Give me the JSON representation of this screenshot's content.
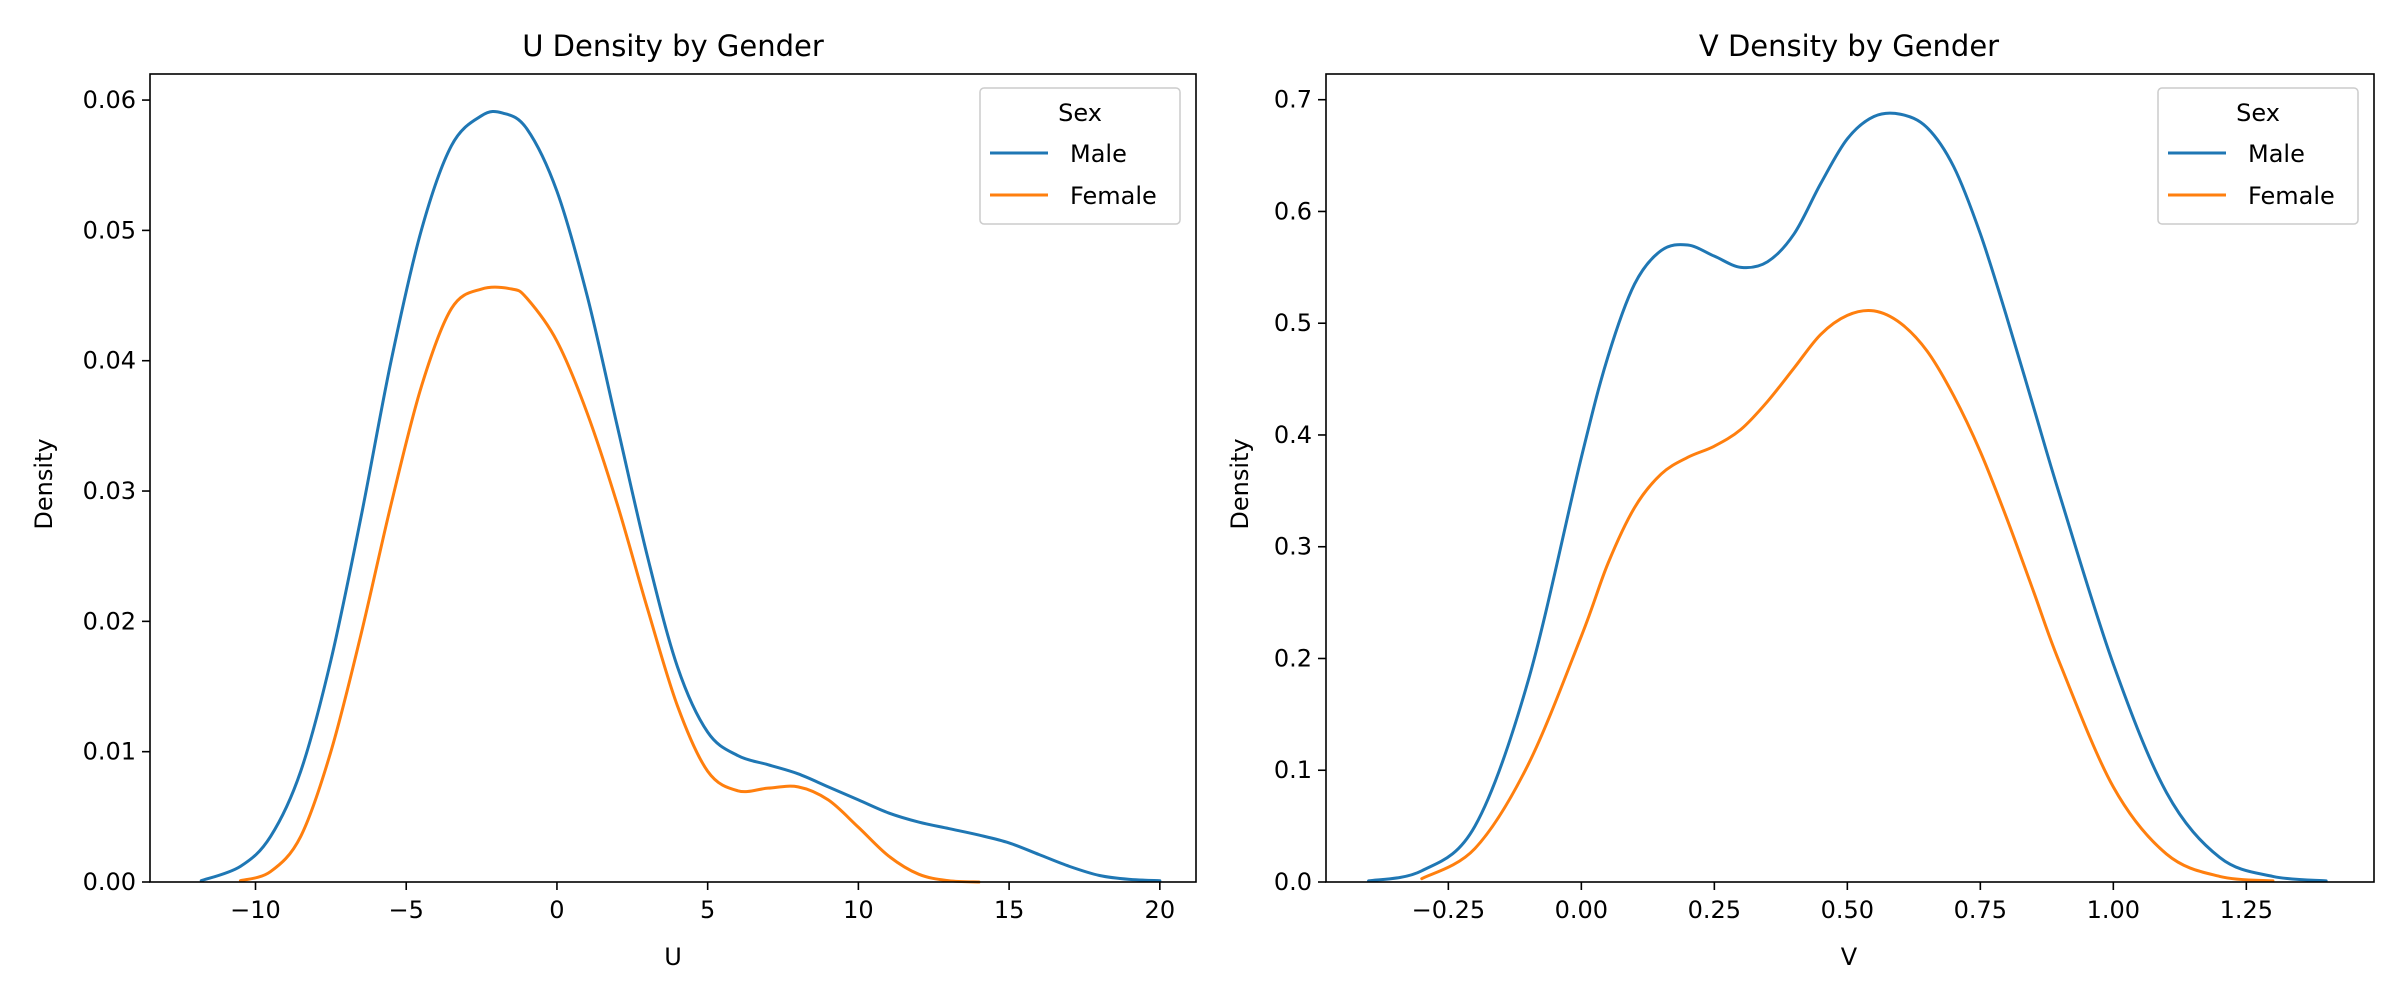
{
  "chart_data": [
    {
      "type": "line",
      "title": "U Density by Gender",
      "xlabel": "U",
      "ylabel": "Density",
      "xlim": [
        -13.5,
        21.2
      ],
      "ylim": [
        0,
        0.062
      ],
      "xticks": [
        -10,
        -5,
        0,
        5,
        10,
        15,
        20
      ],
      "xtick_labels": [
        "−10",
        "−5",
        "0",
        "5",
        "10",
        "15",
        "20"
      ],
      "yticks": [
        0,
        0.01,
        0.02,
        0.03,
        0.04,
        0.05,
        0.06
      ],
      "ytick_labels": [
        "0.00",
        "0.01",
        "0.02",
        "0.03",
        "0.04",
        "0.05",
        "0.06"
      ],
      "grid": false,
      "legend": {
        "title": "Sex",
        "placement": "upper-right"
      },
      "series": [
        {
          "name": "Male",
          "color": "#1f77b4",
          "x": [
            -11.8,
            -10.5,
            -9.5,
            -8.5,
            -7.5,
            -6.5,
            -5.5,
            -4.5,
            -3.5,
            -2.5,
            -1.8,
            -1,
            0,
            1,
            2,
            3,
            4,
            5,
            6,
            7,
            8,
            9,
            10,
            11,
            12,
            13,
            14,
            15,
            16,
            17,
            18,
            19,
            20
          ],
          "y": [
            0.0001,
            0.0012,
            0.0035,
            0.0085,
            0.017,
            0.028,
            0.04,
            0.05,
            0.0565,
            0.0588,
            0.059,
            0.0578,
            0.053,
            0.045,
            0.035,
            0.025,
            0.0165,
            0.0115,
            0.0097,
            0.009,
            0.0083,
            0.0073,
            0.0063,
            0.0053,
            0.0046,
            0.0041,
            0.0036,
            0.003,
            0.0021,
            0.0012,
            0.0005,
            0.0002,
            0.0001
          ]
        },
        {
          "name": "Female",
          "color": "#ff7f0e",
          "x": [
            -10.5,
            -9.5,
            -8.5,
            -7.5,
            -6.5,
            -5.5,
            -4.5,
            -3.5,
            -2.5,
            -1.5,
            -1,
            0,
            1,
            2,
            3,
            4,
            5,
            6,
            7,
            8,
            9,
            10,
            11,
            12,
            13,
            14
          ],
          "y": [
            0.0001,
            0.0008,
            0.0035,
            0.01,
            0.019,
            0.029,
            0.038,
            0.044,
            0.0455,
            0.0455,
            0.0448,
            0.0415,
            0.036,
            0.029,
            0.021,
            0.0135,
            0.0085,
            0.007,
            0.0072,
            0.0073,
            0.0063,
            0.0042,
            0.002,
            0.0006,
            0.0001,
            0
          ]
        }
      ]
    },
    {
      "type": "line",
      "title": "V Density by Gender",
      "xlabel": "V",
      "ylabel": "Density",
      "xlim": [
        -0.48,
        1.49
      ],
      "ylim": [
        0,
        0.723
      ],
      "xticks": [
        -0.25,
        0,
        0.25,
        0.5,
        0.75,
        1,
        1.25
      ],
      "xtick_labels": [
        "−0.25",
        "0.00",
        "0.25",
        "0.50",
        "0.75",
        "1.00",
        "1.25"
      ],
      "yticks": [
        0,
        0.1,
        0.2,
        0.3,
        0.4,
        0.5,
        0.6,
        0.7
      ],
      "ytick_labels": [
        "0.0",
        "0.1",
        "0.2",
        "0.3",
        "0.4",
        "0.5",
        "0.6",
        "0.7"
      ],
      "grid": false,
      "legend": {
        "title": "Sex",
        "placement": "upper-right"
      },
      "series": [
        {
          "name": "Male",
          "color": "#1f77b4",
          "x": [
            -0.4,
            -0.3,
            -0.2,
            -0.1,
            0,
            0.05,
            0.1,
            0.15,
            0.2,
            0.25,
            0.3,
            0.35,
            0.4,
            0.45,
            0.5,
            0.55,
            0.6,
            0.65,
            0.7,
            0.75,
            0.8,
            0.85,
            0.9,
            1,
            1.1,
            1.2,
            1.3,
            1.4
          ],
          "y": [
            0.001,
            0.01,
            0.05,
            0.18,
            0.38,
            0.47,
            0.535,
            0.565,
            0.57,
            0.56,
            0.55,
            0.555,
            0.58,
            0.625,
            0.665,
            0.685,
            0.687,
            0.675,
            0.64,
            0.58,
            0.505,
            0.425,
            0.345,
            0.195,
            0.08,
            0.022,
            0.005,
            0.001
          ]
        },
        {
          "name": "Female",
          "color": "#ff7f0e",
          "x": [
            -0.3,
            -0.2,
            -0.1,
            0,
            0.05,
            0.1,
            0.15,
            0.2,
            0.25,
            0.3,
            0.35,
            0.4,
            0.45,
            0.5,
            0.55,
            0.6,
            0.65,
            0.7,
            0.75,
            0.8,
            0.85,
            0.9,
            1,
            1.1,
            1.2,
            1.3
          ],
          "y": [
            0.003,
            0.03,
            0.105,
            0.22,
            0.285,
            0.335,
            0.365,
            0.38,
            0.39,
            0.405,
            0.43,
            0.46,
            0.49,
            0.507,
            0.511,
            0.5,
            0.475,
            0.435,
            0.385,
            0.325,
            0.26,
            0.195,
            0.085,
            0.025,
            0.005,
            0.001
          ]
        }
      ]
    }
  ]
}
